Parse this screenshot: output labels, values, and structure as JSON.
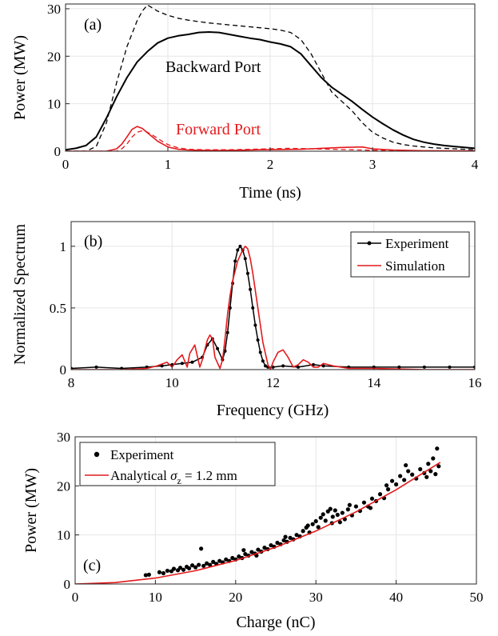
{
  "colors": {
    "black": "#000000",
    "red": "#e41a1c",
    "grid": "#e6e6e6"
  },
  "chart_data": [
    {
      "type": "line",
      "panel_label": "(a)",
      "xlabel": "Time (ns)",
      "ylabel": "Power (MW)",
      "xlim": [
        0,
        4
      ],
      "ylim": [
        0,
        31
      ],
      "xticks": [
        0,
        1,
        2,
        3,
        4
      ],
      "yticks": [
        0,
        10,
        20,
        30
      ],
      "grid": true,
      "annotations": [
        {
          "text": "Backward Port",
          "color": "#000000"
        },
        {
          "text": "Forward Port",
          "color": "#e41a1c"
        }
      ],
      "series": [
        {
          "style": "black-solid",
          "x": [
            0,
            0.1,
            0.2,
            0.3,
            0.4,
            0.5,
            0.6,
            0.7,
            0.8,
            0.9,
            1.0,
            1.1,
            1.2,
            1.3,
            1.4,
            1.5,
            1.6,
            1.7,
            1.8,
            1.9,
            2.0,
            2.1,
            2.2,
            2.3,
            2.4,
            2.5,
            2.6,
            2.7,
            2.8,
            2.9,
            3.0,
            3.1,
            3.2,
            3.3,
            3.4,
            3.5,
            3.6,
            3.7,
            3.8,
            3.9,
            4.0
          ],
          "y": [
            0.3,
            0.6,
            1.2,
            3.0,
            7.0,
            11.5,
            15.5,
            18.8,
            21.0,
            22.8,
            23.8,
            24.3,
            24.6,
            25.0,
            25.1,
            25.0,
            24.6,
            24.2,
            23.8,
            23.5,
            23.0,
            22.6,
            22.0,
            20.5,
            18.0,
            15.5,
            13.5,
            12.0,
            10.5,
            8.8,
            7.2,
            5.8,
            4.5,
            3.4,
            2.5,
            1.9,
            1.5,
            1.2,
            1.0,
            0.8,
            0.6
          ]
        },
        {
          "style": "black-dashed",
          "x": [
            0,
            0.1,
            0.2,
            0.3,
            0.4,
            0.5,
            0.6,
            0.7,
            0.75,
            0.8,
            0.9,
            1.0,
            1.1,
            1.2,
            1.3,
            1.4,
            1.5,
            1.6,
            1.7,
            1.8,
            1.9,
            2.0,
            2.1,
            2.2,
            2.3,
            2.4,
            2.5,
            2.6,
            2.7,
            2.8,
            2.9,
            3.0,
            3.1,
            3.2,
            3.3,
            3.4,
            3.5,
            3.6,
            3.7,
            3.8,
            3.9,
            4.0
          ],
          "y": [
            0.0,
            0.0,
            0.0,
            1.0,
            6.0,
            14.5,
            22.0,
            27.5,
            29.5,
            30.8,
            29.5,
            28.6,
            28.0,
            27.6,
            27.3,
            27.0,
            26.8,
            26.6,
            26.4,
            26.2,
            26.0,
            25.8,
            25.5,
            25.0,
            23.5,
            20.5,
            16.5,
            12.5,
            10.5,
            8.5,
            6.0,
            4.0,
            2.8,
            1.9,
            1.4,
            1.1,
            0.9,
            0.7,
            0.6,
            0.5,
            0.4,
            0.3
          ]
        },
        {
          "style": "red-solid",
          "x": [
            0,
            0.4,
            0.5,
            0.55,
            0.6,
            0.65,
            0.7,
            0.75,
            0.8,
            0.85,
            0.9,
            0.95,
            1.0,
            1.1,
            1.2,
            1.3,
            1.5,
            1.7,
            1.9,
            2.1,
            2.3,
            2.5,
            2.7,
            2.9,
            3.0,
            3.2,
            3.5,
            4.0
          ],
          "y": [
            0,
            0,
            0.5,
            1.5,
            3.0,
            4.6,
            5.2,
            4.8,
            3.9,
            3.0,
            2.1,
            1.5,
            0.9,
            0.4,
            0.25,
            0.2,
            0.15,
            0.2,
            0.3,
            0.35,
            0.4,
            0.6,
            0.8,
            0.9,
            0.5,
            0.25,
            0.1,
            0.05
          ]
        },
        {
          "style": "red-dashed",
          "x": [
            0,
            0.5,
            0.55,
            0.6,
            0.65,
            0.7,
            0.75,
            0.8,
            0.85,
            0.9,
            0.95,
            1.0,
            1.1,
            1.2,
            1.4,
            1.6,
            1.8,
            2.0,
            2.2,
            2.4,
            2.6,
            2.8,
            3.0,
            3.2,
            3.5,
            4.0
          ],
          "y": [
            0,
            0,
            0.5,
            1.5,
            3.0,
            4.0,
            4.3,
            4.0,
            3.4,
            2.7,
            2.0,
            1.4,
            0.7,
            0.4,
            0.3,
            0.3,
            0.4,
            0.5,
            0.6,
            0.5,
            0.4,
            0.3,
            0.2,
            0.1,
            0.05,
            0.0
          ]
        }
      ]
    },
    {
      "type": "line",
      "panel_label": "(b)",
      "xlabel": "Frequency (GHz)",
      "ylabel": "Normalized Spectrum",
      "xlim": [
        8,
        16
      ],
      "ylim": [
        0,
        1.2
      ],
      "xticks": [
        8,
        10,
        12,
        14,
        16
      ],
      "yticks": [
        0,
        0.5,
        1
      ],
      "ytick_labels": [
        "0",
        "0.5",
        "1"
      ],
      "grid": true,
      "legend": {
        "position": "top-right"
      },
      "series": [
        {
          "name": "Experiment",
          "style": "black-line-dots",
          "x": [
            8.0,
            8.5,
            9.0,
            9.5,
            9.8,
            10.0,
            10.2,
            10.4,
            10.6,
            10.7,
            10.8,
            10.9,
            11.0,
            11.05,
            11.1,
            11.15,
            11.2,
            11.25,
            11.3,
            11.35,
            11.4,
            11.45,
            11.5,
            11.55,
            11.6,
            11.65,
            11.7,
            11.75,
            11.8,
            11.85,
            11.9,
            12.0,
            12.2,
            12.5,
            12.8,
            13.0,
            13.5,
            14.0,
            14.5,
            15.0,
            15.5,
            16.0
          ],
          "y": [
            0.01,
            0.02,
            0.01,
            0.02,
            0.03,
            0.04,
            0.05,
            0.06,
            0.1,
            0.2,
            0.25,
            0.17,
            0.08,
            0.15,
            0.3,
            0.5,
            0.7,
            0.88,
            0.97,
            1.0,
            0.97,
            0.9,
            0.78,
            0.65,
            0.5,
            0.36,
            0.24,
            0.14,
            0.07,
            0.03,
            0.02,
            0.02,
            0.03,
            0.02,
            0.04,
            0.03,
            0.02,
            0.02,
            0.02,
            0.02,
            0.02,
            0.02
          ]
        },
        {
          "name": "Simulation",
          "style": "red-solid",
          "x": [
            8.0,
            9.0,
            9.5,
            9.7,
            9.9,
            10.0,
            10.1,
            10.2,
            10.3,
            10.35,
            10.45,
            10.55,
            10.6,
            10.7,
            10.75,
            10.8,
            10.85,
            10.95,
            11.0,
            11.05,
            11.1,
            11.15,
            11.2,
            11.3,
            11.4,
            11.45,
            11.5,
            11.55,
            11.6,
            11.7,
            11.8,
            11.9,
            11.95,
            12.0,
            12.1,
            12.2,
            12.3,
            12.4,
            12.5,
            12.6,
            12.7,
            12.8,
            12.9,
            13.0,
            13.2,
            13.5,
            14.0,
            15.0,
            16.0
          ],
          "y": [
            0.0,
            0.0,
            0.01,
            0.03,
            0.06,
            0.02,
            0.08,
            0.12,
            0.02,
            0.13,
            0.2,
            0.02,
            0.08,
            0.24,
            0.28,
            0.25,
            0.1,
            0.01,
            0.08,
            0.25,
            0.45,
            0.6,
            0.72,
            0.88,
            0.97,
            1.0,
            0.98,
            0.9,
            0.78,
            0.5,
            0.22,
            0.04,
            0.0,
            0.06,
            0.14,
            0.16,
            0.1,
            0.02,
            0.04,
            0.08,
            0.06,
            0.02,
            0.02,
            0.05,
            0.03,
            0.01,
            0.01,
            0.0,
            0.0
          ]
        }
      ]
    },
    {
      "type": "scatter",
      "panel_label": "(c)",
      "xlabel": "Charge (nC)",
      "ylabel": "Power (MW)",
      "xlim": [
        0,
        50
      ],
      "ylim": [
        0,
        30
      ],
      "xticks": [
        0,
        10,
        20,
        30,
        40,
        50
      ],
      "yticks": [
        0,
        10,
        20,
        30
      ],
      "grid": true,
      "legend": {
        "position": "top-left"
      },
      "series": [
        {
          "name": "Experiment",
          "style": "black-dots",
          "points": [
            [
              8.8,
              1.8
            ],
            [
              9.2,
              1.9
            ],
            [
              10.5,
              2.4
            ],
            [
              11.0,
              2.2
            ],
            [
              11.5,
              2.7
            ],
            [
              12.0,
              2.6
            ],
            [
              12.3,
              3.1
            ],
            [
              12.8,
              2.8
            ],
            [
              13.1,
              3.3
            ],
            [
              13.5,
              2.9
            ],
            [
              13.9,
              3.5
            ],
            [
              14.2,
              3.2
            ],
            [
              14.6,
              3.8
            ],
            [
              15.0,
              3.4
            ],
            [
              15.4,
              3.9
            ],
            [
              15.7,
              7.2
            ],
            [
              16.0,
              3.7
            ],
            [
              16.4,
              4.2
            ],
            [
              16.8,
              3.9
            ],
            [
              17.2,
              4.5
            ],
            [
              17.6,
              4.1
            ],
            [
              18.0,
              4.7
            ],
            [
              18.4,
              4.4
            ],
            [
              18.8,
              5.0
            ],
            [
              19.2,
              4.7
            ],
            [
              19.6,
              5.3
            ],
            [
              20.0,
              5.0
            ],
            [
              20.4,
              5.6
            ],
            [
              20.8,
              5.3
            ],
            [
              21.2,
              6.1
            ],
            [
              21.6,
              5.8
            ],
            [
              22.0,
              6.5
            ],
            [
              22.4,
              6.2
            ],
            [
              22.8,
              7.0
            ],
            [
              23.2,
              6.6
            ],
            [
              23.6,
              7.4
            ],
            [
              24.0,
              7.1
            ],
            [
              24.4,
              7.9
            ],
            [
              24.8,
              7.6
            ],
            [
              25.2,
              8.4
            ],
            [
              25.6,
              8.1
            ],
            [
              26.0,
              8.9
            ],
            [
              26.4,
              8.6
            ],
            [
              26.8,
              9.4
            ],
            [
              27.2,
              9.1
            ],
            [
              27.6,
              10.0
            ],
            [
              28.0,
              9.7
            ],
            [
              28.4,
              10.8
            ],
            [
              28.8,
              11.5
            ],
            [
              29.2,
              10.5
            ],
            [
              29.6,
              12.2
            ],
            [
              30.0,
              12.8
            ],
            [
              30.3,
              11.6
            ],
            [
              30.6,
              13.5
            ],
            [
              30.9,
              14.2
            ],
            [
              31.2,
              12.9
            ],
            [
              31.5,
              14.8
            ],
            [
              31.8,
              15.3
            ],
            [
              32.1,
              13.7
            ],
            [
              32.4,
              15.0
            ],
            [
              32.7,
              14.1
            ],
            [
              33.0,
              12.6
            ],
            [
              33.3,
              14.5
            ],
            [
              33.6,
              13.2
            ],
            [
              34.0,
              15.2
            ],
            [
              34.5,
              14.0
            ],
            [
              35.0,
              15.8
            ],
            [
              35.5,
              14.9
            ],
            [
              36.0,
              16.6
            ],
            [
              36.5,
              15.8
            ],
            [
              37.0,
              17.4
            ],
            [
              37.5,
              16.9
            ],
            [
              38.0,
              18.3
            ],
            [
              38.5,
              17.5
            ],
            [
              39.0,
              19.3
            ],
            [
              39.5,
              21.0
            ],
            [
              40.0,
              20.3
            ],
            [
              40.5,
              22.0
            ],
            [
              41.0,
              21.2
            ],
            [
              41.5,
              23.0
            ],
            [
              42.0,
              22.3
            ],
            [
              42.5,
              21.5
            ],
            [
              43.0,
              23.4
            ],
            [
              43.5,
              22.6
            ],
            [
              44.0,
              24.5
            ],
            [
              44.3,
              23.0
            ],
            [
              44.6,
              25.6
            ],
            [
              44.9,
              22.4
            ],
            [
              45.1,
              27.6
            ],
            [
              45.3,
              24.0
            ],
            [
              21.0,
              6.9
            ],
            [
              22.6,
              5.8
            ],
            [
              26.2,
              9.6
            ],
            [
              29.0,
              11.9
            ],
            [
              32.0,
              12.4
            ],
            [
              34.2,
              16.1
            ],
            [
              36.8,
              15.5
            ],
            [
              38.8,
              20.1
            ],
            [
              41.2,
              24.2
            ],
            [
              43.8,
              21.8
            ]
          ]
        },
        {
          "name": "Analytical σz = 1.2 mm",
          "style": "red-solid",
          "x": [
            0,
            5,
            10,
            15,
            20,
            25,
            30,
            35,
            40,
            45.5
          ],
          "y": [
            0,
            0.3,
            1.2,
            2.7,
            4.8,
            7.5,
            10.8,
            14.7,
            19.2,
            24.8
          ]
        }
      ]
    }
  ]
}
